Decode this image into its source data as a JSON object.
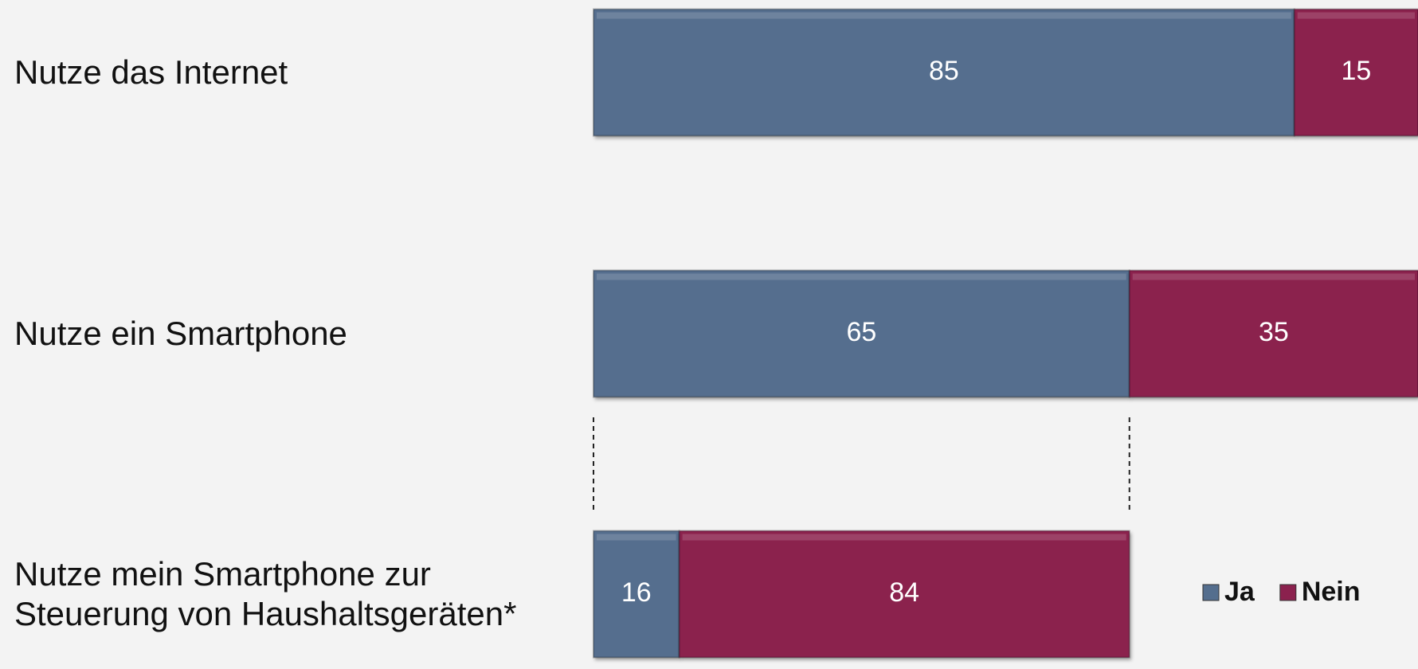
{
  "chart_data": {
    "type": "stacked-bar-horizontal",
    "categories": [
      "Nutze das Internet",
      "Nutze ein Smartphone",
      "Nutze mein Smartphone zur Steuerung von Haushaltsgeräten*"
    ],
    "series": [
      {
        "name": "Ja",
        "color": "#546e8e",
        "values": [
          85,
          65,
          16
        ]
      },
      {
        "name": "Nein",
        "color": "#8b214e",
        "values": [
          15,
          35,
          84
        ]
      }
    ],
    "xlim": [
      0,
      100
    ],
    "legend": "lower right"
  }
}
